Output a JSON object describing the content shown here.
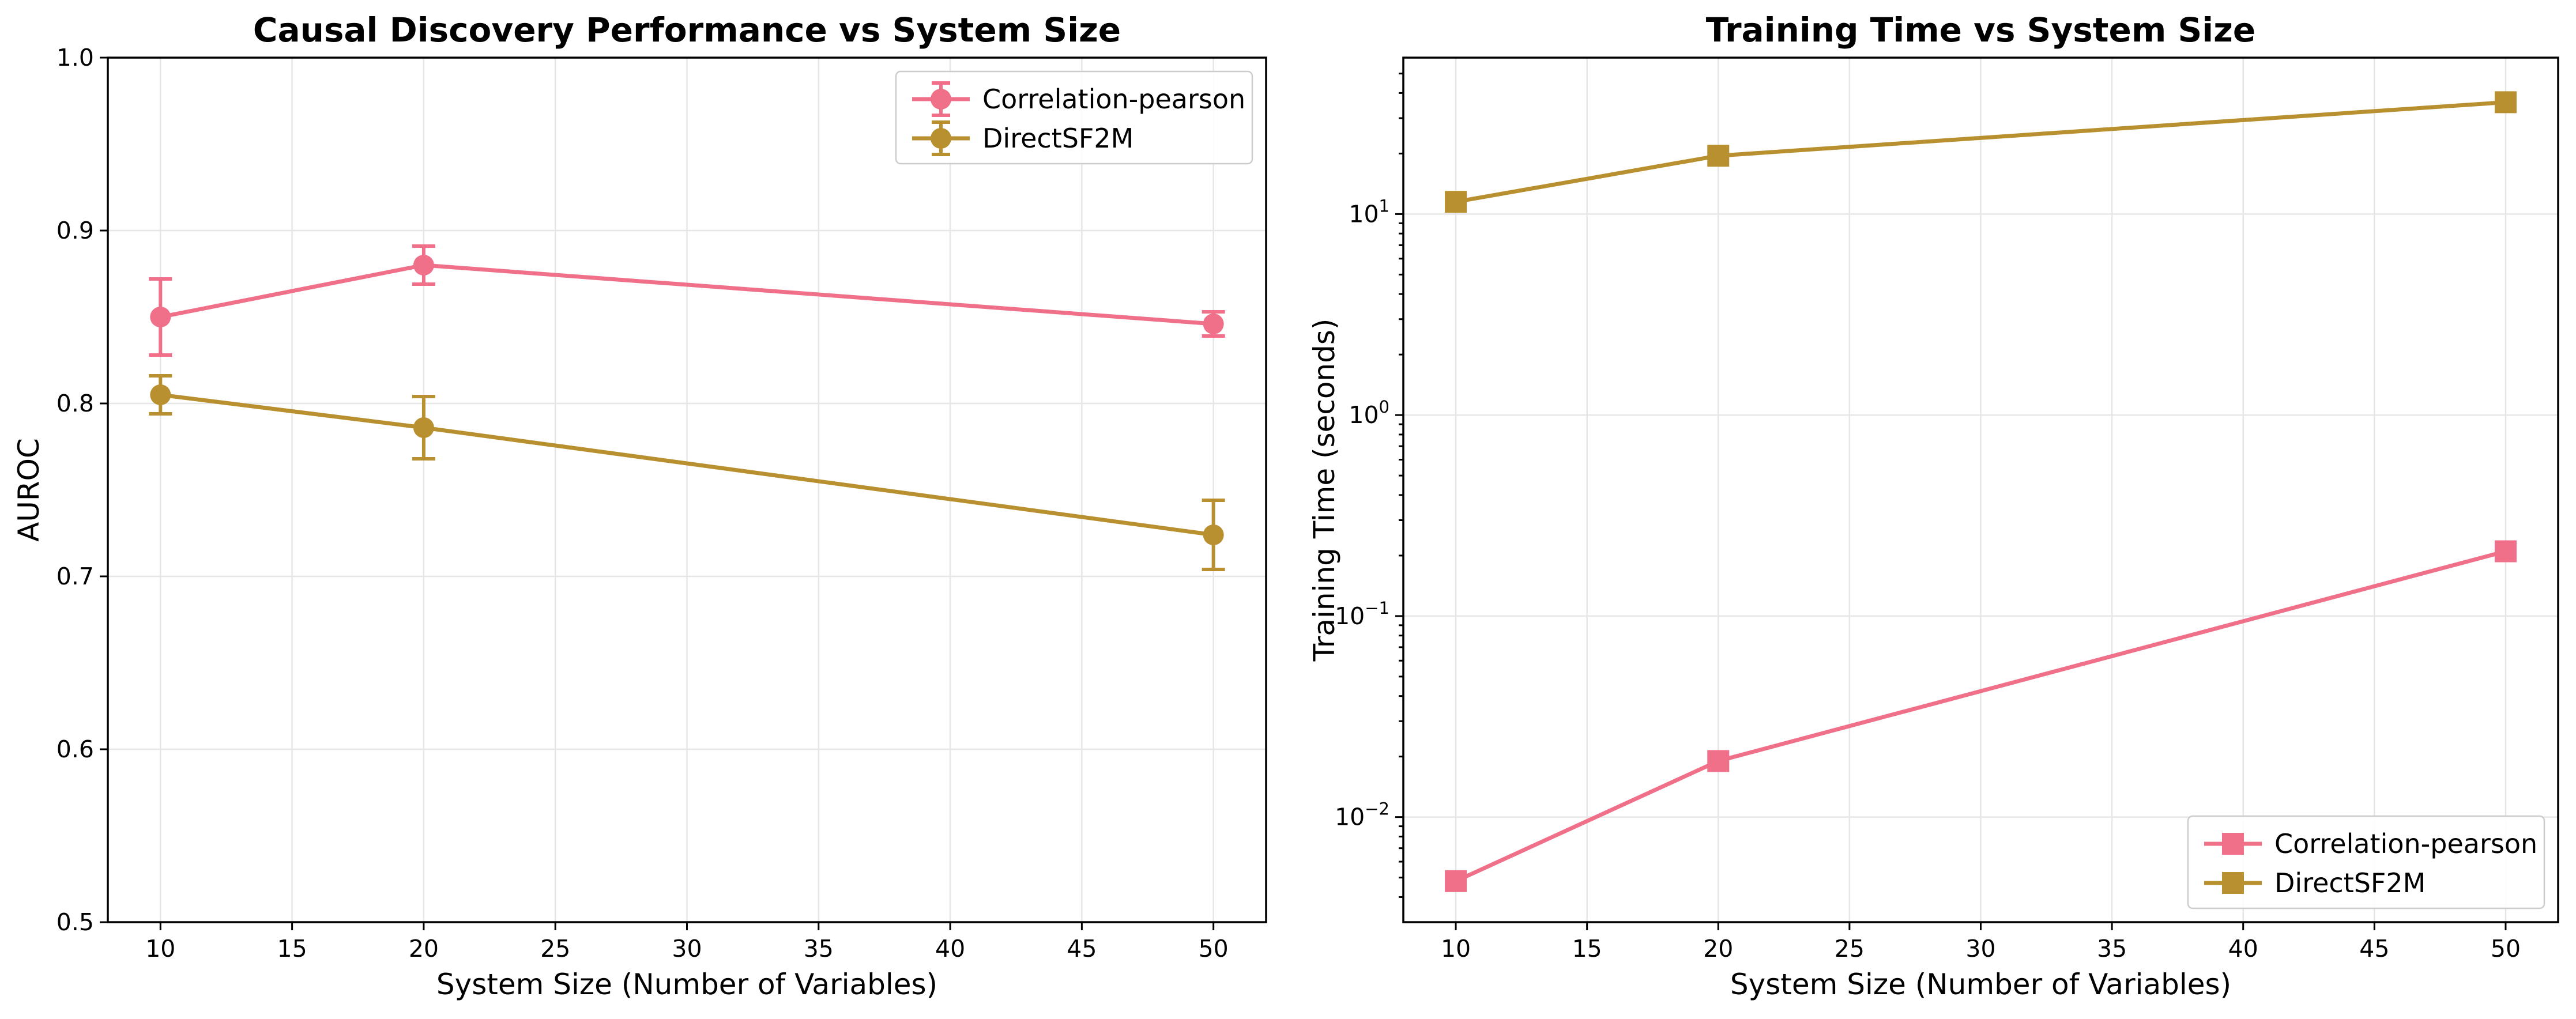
{
  "colors": {
    "pearson": "#f0708a",
    "directsf2m": "#b8902f"
  },
  "chart_data": [
    {
      "type": "line",
      "title": "Causal Discovery Performance vs System Size",
      "xlabel": "System Size (Number of Variables)",
      "ylabel": "AUROC",
      "xlim": [
        8,
        52
      ],
      "ylim": [
        0.5,
        1.0
      ],
      "xticks": [
        10,
        15,
        20,
        25,
        30,
        35,
        40,
        45,
        50
      ],
      "yticks": [
        0.5,
        0.6,
        0.7,
        0.8,
        0.9,
        1.0
      ],
      "ytick_labels": [
        "0.5",
        "0.6",
        "0.7",
        "0.8",
        "0.9",
        "1.0"
      ],
      "grid": true,
      "legend_position": "upper right",
      "marker": "circle",
      "x": [
        10,
        20,
        50
      ],
      "series": [
        {
          "name": "Correlation-pearson",
          "color": "#f0708a",
          "values": [
            0.85,
            0.88,
            0.846
          ],
          "errors": [
            0.022,
            0.011,
            0.007
          ]
        },
        {
          "name": "DirectSF2M",
          "color": "#b8902f",
          "values": [
            0.805,
            0.786,
            0.724
          ],
          "errors": [
            0.011,
            0.018,
            0.02
          ]
        }
      ]
    },
    {
      "type": "line",
      "title": "Training Time vs System Size",
      "xlabel": "System Size (Number of Variables)",
      "ylabel": "Training Time (seconds)",
      "xlim": [
        8,
        52
      ],
      "ylim": [
        0.003,
        60
      ],
      "yscale": "log",
      "xticks": [
        10,
        15,
        20,
        25,
        30,
        35,
        40,
        45,
        50
      ],
      "yticks": [
        0.01,
        0.1,
        1,
        10
      ],
      "ytick_labels": [
        {
          "base": "10",
          "exp": "−2"
        },
        {
          "base": "10",
          "exp": "−1"
        },
        {
          "base": "10",
          "exp": "0"
        },
        {
          "base": "10",
          "exp": "1"
        }
      ],
      "grid": true,
      "legend_position": "lower right",
      "marker": "square",
      "x": [
        10,
        20,
        50
      ],
      "series": [
        {
          "name": "Correlation-pearson",
          "color": "#f0708a",
          "values": [
            0.0048,
            0.019,
            0.21
          ]
        },
        {
          "name": "DirectSF2M",
          "color": "#b8902f",
          "values": [
            11.5,
            19.5,
            36.0
          ]
        }
      ]
    }
  ]
}
